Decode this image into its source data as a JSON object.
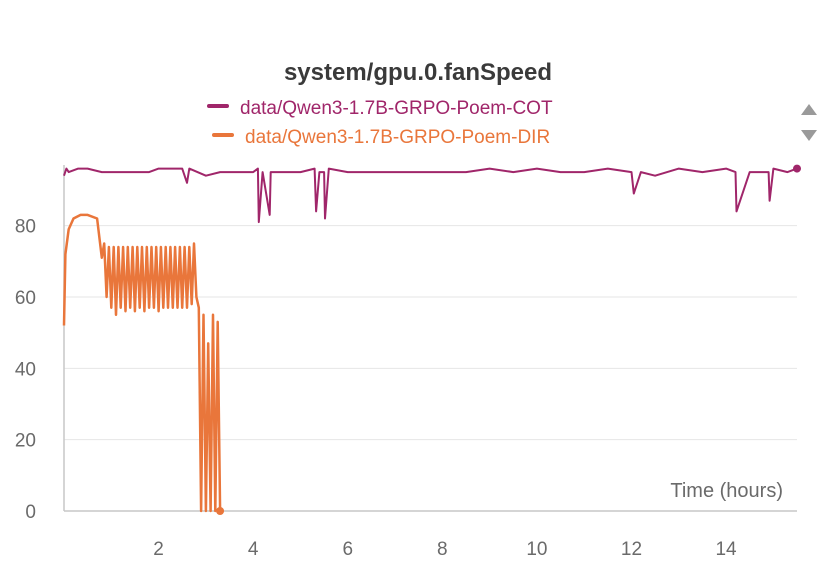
{
  "chart_data": {
    "type": "line",
    "title": "system/gpu.0.fanSpeed",
    "xlabel": "Time (hours)",
    "ylabel": "",
    "xlim": [
      0,
      15.5
    ],
    "ylim": [
      0,
      97
    ],
    "xticks": [
      2,
      4,
      6,
      8,
      10,
      12,
      14
    ],
    "yticks": [
      0,
      20,
      40,
      60,
      80
    ],
    "grid": true,
    "legend_position": "top-center",
    "series": [
      {
        "name": "data/Qwen3-1.7B-GRPO-Poem-COT",
        "color": "#a0266a",
        "x": [
          0,
          0.05,
          0.1,
          0.3,
          0.5,
          0.8,
          1.2,
          1.8,
          2.0,
          2.5,
          2.6,
          2.65,
          3.0,
          3.3,
          3.6,
          4.0,
          4.1,
          4.12,
          4.2,
          4.35,
          4.37,
          4.5,
          5.0,
          5.3,
          5.33,
          5.4,
          5.5,
          5.52,
          5.6,
          6.0,
          6.5,
          7.0,
          7.5,
          8.0,
          8.5,
          9.0,
          9.5,
          10.0,
          10.5,
          11.0,
          11.5,
          12.0,
          12.05,
          12.2,
          12.5,
          13.0,
          13.5,
          14.0,
          14.2,
          14.22,
          14.5,
          14.9,
          14.92,
          15.0,
          15.3,
          15.5
        ],
        "y": [
          94,
          96,
          95,
          96,
          96,
          95,
          95,
          95,
          96,
          96,
          92,
          96,
          94,
          95,
          95,
          95,
          96,
          81,
          95,
          83,
          95,
          95,
          95,
          96,
          84,
          95,
          95,
          82,
          96,
          95,
          95,
          95,
          95,
          95,
          95,
          96,
          95,
          96,
          95,
          95,
          96,
          95,
          89,
          95,
          94,
          96,
          95,
          96,
          95,
          84,
          95,
          95,
          87,
          96,
          95,
          96
        ]
      },
      {
        "name": "data/Qwen3-1.7B-GRPO-Poem-DIR",
        "color": "#e9763b",
        "x": [
          0,
          0.03,
          0.1,
          0.2,
          0.35,
          0.5,
          0.7,
          0.8,
          0.85,
          0.9,
          0.95,
          1.0,
          1.05,
          1.1,
          1.15,
          1.2,
          1.25,
          1.3,
          1.35,
          1.4,
          1.45,
          1.5,
          1.55,
          1.6,
          1.65,
          1.7,
          1.75,
          1.8,
          1.85,
          1.9,
          1.95,
          2.0,
          2.05,
          2.1,
          2.15,
          2.2,
          2.25,
          2.3,
          2.35,
          2.4,
          2.45,
          2.5,
          2.55,
          2.6,
          2.65,
          2.7,
          2.75,
          2.8,
          2.85,
          2.9,
          2.95,
          3.0,
          3.05,
          3.1,
          3.15,
          3.2,
          3.25,
          3.3
        ],
        "y": [
          52,
          72,
          79,
          82,
          83,
          83,
          82,
          71,
          75,
          60,
          74,
          57,
          74,
          55,
          74,
          57,
          74,
          56,
          74,
          57,
          74,
          56,
          74,
          57,
          74,
          56,
          74,
          57,
          74,
          57,
          74,
          56,
          74,
          57,
          74,
          57,
          74,
          57,
          74,
          57,
          74,
          57,
          74,
          57,
          74,
          58,
          75,
          60,
          57,
          0,
          55,
          0,
          47,
          0,
          55,
          0,
          53,
          0
        ]
      }
    ]
  }
}
